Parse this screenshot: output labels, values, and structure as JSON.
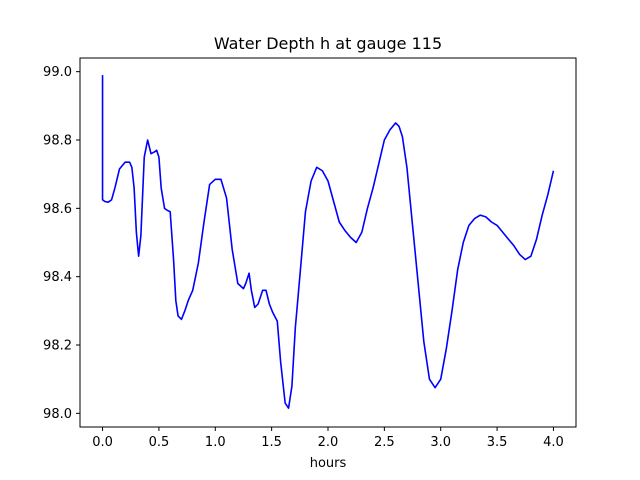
{
  "chart_data": {
    "type": "line",
    "title": "Water Depth h at gauge 115",
    "xlabel": "hours",
    "ylabel": "",
    "xlim": [
      -0.2,
      4.2
    ],
    "ylim": [
      97.96,
      99.04
    ],
    "xticks": [
      0.0,
      0.5,
      1.0,
      1.5,
      2.0,
      2.5,
      3.0,
      3.5,
      4.0
    ],
    "xtick_labels": [
      "0.0",
      "0.5",
      "1.0",
      "1.5",
      "2.0",
      "2.5",
      "3.0",
      "3.5",
      "4.0"
    ],
    "yticks": [
      98.0,
      98.2,
      98.4,
      98.6,
      98.8,
      99.0
    ],
    "ytick_labels": [
      "98.0",
      "98.2",
      "98.4",
      "98.6",
      "98.8",
      "99.0"
    ],
    "grid": false,
    "series": [
      {
        "color": "#0000ff",
        "x": [
          0.0,
          0.0,
          0.02,
          0.05,
          0.08,
          0.11,
          0.15,
          0.2,
          0.24,
          0.26,
          0.28,
          0.3,
          0.32,
          0.34,
          0.37,
          0.4,
          0.43,
          0.46,
          0.48,
          0.5,
          0.52,
          0.55,
          0.57,
          0.6,
          0.63,
          0.65,
          0.67,
          0.7,
          0.73,
          0.76,
          0.8,
          0.85,
          0.9,
          0.95,
          1.0,
          1.05,
          1.1,
          1.15,
          1.2,
          1.25,
          1.27,
          1.3,
          1.32,
          1.35,
          1.38,
          1.42,
          1.45,
          1.48,
          1.51,
          1.55,
          1.58,
          1.62,
          1.65,
          1.68,
          1.71,
          1.75,
          1.8,
          1.85,
          1.9,
          1.95,
          2.0,
          2.05,
          2.1,
          2.15,
          2.2,
          2.25,
          2.3,
          2.35,
          2.4,
          2.45,
          2.5,
          2.55,
          2.6,
          2.63,
          2.66,
          2.7,
          2.75,
          2.8,
          2.85,
          2.9,
          2.95,
          3.0,
          3.05,
          3.1,
          3.15,
          3.2,
          3.25,
          3.3,
          3.35,
          3.4,
          3.45,
          3.5,
          3.55,
          3.6,
          3.65,
          3.7,
          3.75,
          3.8,
          3.85,
          3.9,
          3.95,
          4.0
        ],
        "y": [
          98.99,
          98.625,
          98.62,
          98.618,
          98.625,
          98.66,
          98.715,
          98.735,
          98.735,
          98.72,
          98.66,
          98.53,
          98.46,
          98.52,
          98.75,
          98.8,
          98.76,
          98.765,
          98.77,
          98.75,
          98.66,
          98.6,
          98.595,
          98.59,
          98.45,
          98.33,
          98.285,
          98.275,
          98.3,
          98.33,
          98.36,
          98.44,
          98.56,
          98.67,
          98.685,
          98.685,
          98.63,
          98.48,
          98.38,
          98.365,
          98.38,
          98.41,
          98.36,
          98.31,
          98.32,
          98.36,
          98.36,
          98.32,
          98.295,
          98.27,
          98.15,
          98.03,
          98.015,
          98.08,
          98.25,
          98.4,
          98.59,
          98.68,
          98.72,
          98.71,
          98.68,
          98.62,
          98.56,
          98.535,
          98.515,
          98.5,
          98.53,
          98.6,
          98.66,
          98.73,
          98.8,
          98.83,
          98.85,
          98.84,
          98.81,
          98.72,
          98.55,
          98.38,
          98.21,
          98.1,
          98.075,
          98.1,
          98.19,
          98.3,
          98.42,
          98.5,
          98.55,
          98.57,
          98.58,
          98.575,
          98.56,
          98.55,
          98.53,
          98.51,
          98.49,
          98.465,
          98.45,
          98.46,
          98.51,
          98.58,
          98.64,
          98.71
        ]
      }
    ]
  }
}
